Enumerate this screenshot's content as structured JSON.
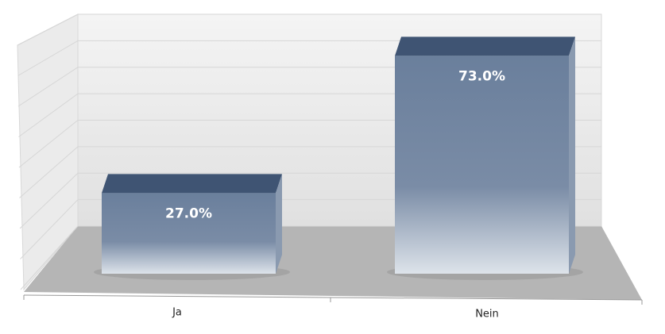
{
  "chart_data": {
    "type": "bar",
    "categories": [
      "Ja",
      "Nein"
    ],
    "values": [
      27.0,
      73.0
    ],
    "value_labels": [
      "27.0%",
      "73.0%"
    ],
    "color": "#5a7090",
    "ylim": [
      0,
      80
    ],
    "yticks": [
      0,
      10,
      20,
      30,
      40,
      50,
      60,
      70,
      80
    ],
    "grid": true
  }
}
